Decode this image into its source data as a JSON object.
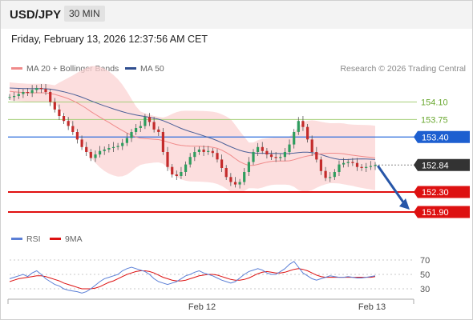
{
  "header": {
    "symbol": "USD/JPY",
    "timeframe": "30 MIN",
    "timestamp": "Friday, February 13, 2026 12:37:56 AM CET"
  },
  "legend": {
    "price": [
      {
        "label": "MA 20 + Bollinger Bands",
        "color": "#f08a8a"
      },
      {
        "label": "MA 50",
        "color": "#2f4e8f"
      }
    ],
    "rsi": [
      {
        "label": "RSI",
        "color": "#5b7fd6"
      },
      {
        "label": "9MA",
        "color": "#dd1111"
      }
    ]
  },
  "credit": "Research © 2026 Trading Central",
  "chart_data": {
    "type": "line",
    "title": "",
    "x_ticks": [
      "Feb 12",
      "Feb 13"
    ],
    "ylim": [
      151.5,
      154.7
    ],
    "levels": [
      {
        "value": 154.1,
        "label": "154.10",
        "kind": "resistance",
        "color": "#6aa830"
      },
      {
        "value": 153.75,
        "label": "153.75",
        "kind": "resistance",
        "color": "#6aa830"
      },
      {
        "value": 153.4,
        "label": "153.40",
        "kind": "pivot",
        "color": "#1d5fd0"
      },
      {
        "value": 152.84,
        "label": "152.84",
        "kind": "last",
        "color": "#333333"
      },
      {
        "value": 152.3,
        "label": "152.30",
        "kind": "support",
        "color": "#dd1111"
      },
      {
        "value": 151.9,
        "label": "151.90",
        "kind": "support",
        "color": "#dd1111"
      }
    ],
    "price_series": [
      154.2,
      154.22,
      154.26,
      154.3,
      154.28,
      154.34,
      154.38,
      154.36,
      154.3,
      154.1,
      153.95,
      153.82,
      153.72,
      153.62,
      153.5,
      153.35,
      153.2,
      153.1,
      152.98,
      153.05,
      153.12,
      153.15,
      153.18,
      153.2,
      153.22,
      153.28,
      153.38,
      153.5,
      153.58,
      153.62,
      153.8,
      153.7,
      153.55,
      153.5,
      153.1,
      152.8,
      152.65,
      152.62,
      152.7,
      152.85,
      153.0,
      153.1,
      153.15,
      153.1,
      153.12,
      153.08,
      152.95,
      152.78,
      152.6,
      152.5,
      152.45,
      152.5,
      152.7,
      152.9,
      153.1,
      153.2,
      153.12,
      153.05,
      153.0,
      152.98,
      153.0,
      153.1,
      153.25,
      153.5,
      153.72,
      153.6,
      153.35,
      153.1,
      152.95,
      152.72,
      152.58,
      152.6,
      152.7,
      152.85,
      152.88,
      152.9,
      152.88,
      152.8,
      152.78,
      152.8,
      152.82,
      152.84
    ],
    "rsi": {
      "ticks": [
        70,
        50,
        30
      ],
      "ylim": [
        20,
        80
      ],
      "rsi_series": [
        44,
        46,
        48,
        50,
        47,
        52,
        55,
        50,
        44,
        40,
        36,
        34,
        30,
        28,
        27,
        26,
        24,
        26,
        30,
        35,
        40,
        44,
        46,
        48,
        50,
        55,
        58,
        60,
        58,
        56,
        54,
        50,
        44,
        40,
        38,
        36,
        38,
        40,
        44,
        48,
        50,
        53,
        55,
        52,
        50,
        48,
        45,
        42,
        40,
        38,
        40,
        45,
        50,
        54,
        56,
        58,
        56,
        52,
        50,
        50,
        54,
        58,
        64,
        68,
        60,
        52,
        48,
        44,
        42,
        44,
        46,
        48,
        47,
        46,
        46,
        47,
        46,
        45,
        45,
        46,
        47,
        48
      ],
      "ma9_series": [
        40,
        42,
        44,
        45,
        46,
        47,
        48,
        48,
        47,
        45,
        43,
        41,
        38,
        36,
        34,
        32,
        30,
        30,
        30,
        31,
        33,
        36,
        39,
        41,
        44,
        47,
        50,
        52,
        54,
        55,
        55,
        54,
        52,
        49,
        46,
        44,
        42,
        41,
        41,
        42,
        44,
        46,
        48,
        49,
        50,
        50,
        49,
        47,
        45,
        43,
        42,
        42,
        43,
        45,
        48,
        51,
        53,
        54,
        53,
        52,
        52,
        53,
        55,
        57,
        58,
        57,
        55,
        52,
        49,
        47,
        46,
        46,
        46,
        46,
        46,
        46,
        46,
        46,
        46,
        46,
        46,
        47
      ]
    }
  }
}
